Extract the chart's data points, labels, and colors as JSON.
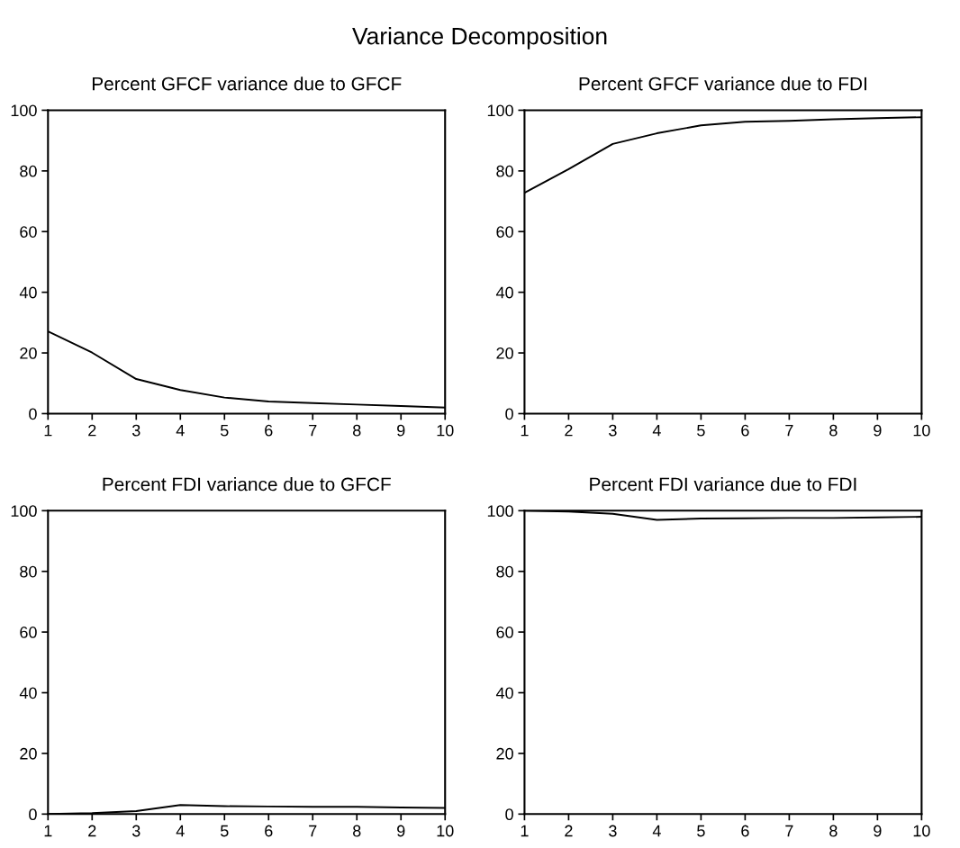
{
  "chart_data": [
    {
      "type": "line",
      "title": "Percent GFCF variance due to GFCF",
      "annotations": [
        "Variance Decomposition"
      ],
      "x": [
        1,
        2,
        3,
        4,
        5,
        6,
        7,
        8,
        9,
        10
      ],
      "series": [
        {
          "color": "#000000",
          "values": [
            27.1,
            20.1,
            11.4,
            7.8,
            5.3,
            4.0,
            3.5,
            3.0,
            2.5,
            2.0
          ]
        }
      ],
      "xlim": [
        1,
        10
      ],
      "xticks": [
        1,
        2,
        3,
        4,
        5,
        6,
        7,
        8,
        9,
        10
      ],
      "ylim": [
        0,
        100
      ],
      "yticks": [
        0,
        20,
        40,
        60,
        80,
        100
      ]
    },
    {
      "type": "line",
      "title": "Percent GFCF variance due to FDI",
      "x": [
        1,
        2,
        3,
        4,
        5,
        6,
        7,
        8,
        9,
        10
      ],
      "series": [
        {
          "color": "#000000",
          "values": [
            72.8,
            80.6,
            88.9,
            92.4,
            95.0,
            96.2,
            96.5,
            97.0,
            97.4,
            97.7
          ]
        }
      ],
      "xlim": [
        1,
        10
      ],
      "xticks": [
        1,
        2,
        3,
        4,
        5,
        6,
        7,
        8,
        9,
        10
      ],
      "ylim": [
        0,
        100
      ],
      "yticks": [
        0,
        20,
        40,
        60,
        80,
        100
      ]
    },
    {
      "type": "line",
      "title": "Percent FDI variance due to GFCF",
      "x": [
        1,
        2,
        3,
        4,
        5,
        6,
        7,
        8,
        9,
        10
      ],
      "series": [
        {
          "color": "#000000",
          "values": [
            0.0,
            0.3,
            1.0,
            3.0,
            2.6,
            2.5,
            2.4,
            2.4,
            2.2,
            2.0
          ]
        }
      ],
      "xlim": [
        1,
        10
      ],
      "xticks": [
        1,
        2,
        3,
        4,
        5,
        6,
        7,
        8,
        9,
        10
      ],
      "ylim": [
        0,
        100
      ],
      "yticks": [
        0,
        20,
        40,
        60,
        80,
        100
      ]
    },
    {
      "type": "line",
      "title": "Percent FDI variance due to FDI",
      "x": [
        1,
        2,
        3,
        4,
        5,
        6,
        7,
        8,
        9,
        10
      ],
      "series": [
        {
          "color": "#000000",
          "values": [
            100.0,
            99.7,
            99.0,
            97.0,
            97.4,
            97.5,
            97.6,
            97.6,
            97.8,
            98.0
          ]
        }
      ],
      "xlim": [
        1,
        10
      ],
      "xticks": [
        1,
        2,
        3,
        4,
        5,
        6,
        7,
        8,
        9,
        10
      ],
      "ylim": [
        0,
        100
      ],
      "yticks": [
        0,
        20,
        40,
        60,
        80,
        100
      ]
    }
  ]
}
